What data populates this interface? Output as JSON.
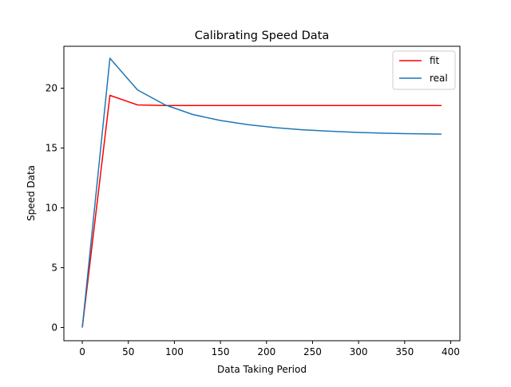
{
  "chart_data": {
    "type": "line",
    "title": "Calibrating Speed Data",
    "xlabel": "Data Taking Period",
    "ylabel": "Speed Data",
    "xlim": [
      -20,
      410
    ],
    "ylim": [
      -1.1,
      23.5
    ],
    "xticks": [
      0,
      50,
      100,
      150,
      200,
      250,
      300,
      350,
      400
    ],
    "yticks": [
      0,
      5,
      10,
      15,
      20
    ],
    "grid": false,
    "legend": "top-right",
    "x": [
      0,
      30,
      60,
      90,
      120,
      150,
      180,
      210,
      240,
      270,
      300,
      330,
      360,
      390
    ],
    "series": [
      {
        "name": "fit",
        "color": "#ff0000",
        "values": [
          0,
          19.4,
          18.6,
          18.55,
          18.55,
          18.55,
          18.55,
          18.55,
          18.55,
          18.55,
          18.55,
          18.55,
          18.55,
          18.55
        ]
      },
      {
        "name": "real",
        "color": "#1f77b4",
        "values": [
          0,
          22.5,
          19.85,
          18.6,
          17.8,
          17.3,
          16.95,
          16.7,
          16.52,
          16.4,
          16.3,
          16.23,
          16.19,
          16.16
        ]
      }
    ]
  }
}
